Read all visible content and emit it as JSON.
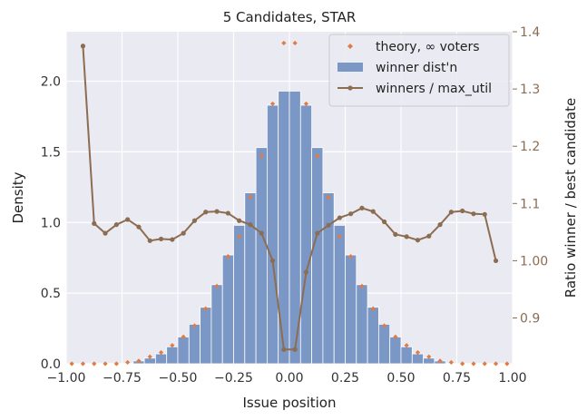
{
  "chart_data": {
    "type": "bar",
    "title": "5 Candidates, STAR",
    "xlabel": "Issue position",
    "ylabel": "Density",
    "y2label": "Ratio winner / best candidate",
    "xlim": [
      -1.0,
      1.0
    ],
    "ylim": [
      0,
      2.35
    ],
    "y2lim": [
      0.82,
      1.4
    ],
    "xticks": [
      -1.0,
      -0.75,
      -0.5,
      -0.25,
      0.0,
      0.25,
      0.5,
      0.75,
      1.0
    ],
    "xtick_labels": [
      "−1.00",
      "−0.75",
      "−0.50",
      "−0.25",
      "0.00",
      "0.25",
      "0.50",
      "0.75",
      "1.00"
    ],
    "yticks": [
      0.0,
      0.5,
      1.0,
      1.5,
      2.0
    ],
    "ytick_labels": [
      "0.0",
      "0.5",
      "1.0",
      "1.5",
      "2.0"
    ],
    "y2ticks": [
      0.9,
      1.0,
      1.1,
      1.2,
      1.3,
      1.4
    ],
    "y2tick_labels": [
      "0.9",
      "1.00",
      "1.1",
      "1.2",
      "1.3",
      "1.4"
    ],
    "grid": true,
    "legend_position": "top-right",
    "colors": {
      "bars": "#7b97c5",
      "theory": "#e07b44",
      "ratio": "#8c6d52",
      "background": "#eaeaf2",
      "grid": "#ffffff",
      "right_axis_text": "#8c6d52"
    },
    "legend": [
      {
        "label": "theory, ∞ voters",
        "kind": "marker"
      },
      {
        "label": "winner dist'n",
        "kind": "bar"
      },
      {
        "label": "winners / max_util",
        "kind": "line"
      }
    ],
    "series": [
      {
        "name": "winner dist'n",
        "type": "bar",
        "bin_width": 0.05,
        "bin_centers": [
          -0.675,
          -0.625,
          -0.575,
          -0.525,
          -0.475,
          -0.425,
          -0.375,
          -0.325,
          -0.275,
          -0.225,
          -0.175,
          -0.125,
          -0.075,
          -0.025,
          0.025,
          0.075,
          0.125,
          0.175,
          0.225,
          0.275,
          0.325,
          0.375,
          0.425,
          0.475,
          0.525,
          0.575,
          0.625,
          0.675
        ],
        "values": [
          0.02,
          0.04,
          0.07,
          0.12,
          0.19,
          0.28,
          0.4,
          0.56,
          0.77,
          0.98,
          1.21,
          1.53,
          1.83,
          1.93,
          1.93,
          1.83,
          1.53,
          1.21,
          0.98,
          0.77,
          0.56,
          0.4,
          0.28,
          0.19,
          0.12,
          0.07,
          0.04,
          0.02
        ]
      },
      {
        "name": "theory, ∞ voters",
        "type": "scatter",
        "x": [
          -0.975,
          -0.925,
          -0.875,
          -0.825,
          -0.775,
          -0.725,
          -0.675,
          -0.625,
          -0.575,
          -0.525,
          -0.475,
          -0.425,
          -0.375,
          -0.325,
          -0.275,
          -0.225,
          -0.175,
          -0.125,
          -0.075,
          -0.025,
          0.025,
          0.075,
          0.125,
          0.175,
          0.225,
          0.275,
          0.325,
          0.375,
          0.425,
          0.475,
          0.525,
          0.575,
          0.625,
          0.675,
          0.725,
          0.775,
          0.825,
          0.875,
          0.925,
          0.975
        ],
        "y": [
          0.0,
          0.0,
          0.0,
          0.0,
          0.0,
          0.01,
          0.02,
          0.05,
          0.08,
          0.13,
          0.19,
          0.27,
          0.39,
          0.55,
          0.76,
          0.9,
          1.18,
          1.47,
          1.84,
          2.27,
          2.27,
          1.84,
          1.47,
          1.18,
          0.9,
          0.76,
          0.55,
          0.39,
          0.27,
          0.19,
          0.13,
          0.08,
          0.05,
          0.02,
          0.01,
          0.0,
          0.0,
          0.0,
          0.0,
          0.0
        ]
      },
      {
        "name": "winners / max_util",
        "type": "line",
        "axis": "right",
        "x": [
          -0.925,
          -0.875,
          -0.825,
          -0.775,
          -0.725,
          -0.675,
          -0.625,
          -0.575,
          -0.525,
          -0.475,
          -0.425,
          -0.375,
          -0.325,
          -0.275,
          -0.225,
          -0.175,
          -0.125,
          -0.075,
          -0.025,
          0.025,
          0.075,
          0.125,
          0.175,
          0.225,
          0.275,
          0.325,
          0.375,
          0.425,
          0.475,
          0.525,
          0.575,
          0.625,
          0.675,
          0.725,
          0.775,
          0.825,
          0.875,
          0.925
        ],
        "y": [
          1.375,
          1.065,
          1.048,
          1.063,
          1.072,
          1.059,
          1.035,
          1.038,
          1.037,
          1.048,
          1.07,
          1.085,
          1.086,
          1.083,
          1.07,
          1.063,
          1.048,
          1.0,
          0.845,
          0.845,
          0.98,
          1.048,
          1.062,
          1.075,
          1.082,
          1.092,
          1.086,
          1.068,
          1.046,
          1.042,
          1.036,
          1.043,
          1.063,
          1.085,
          1.087,
          1.082,
          1.081,
          1.0
        ]
      }
    ]
  }
}
